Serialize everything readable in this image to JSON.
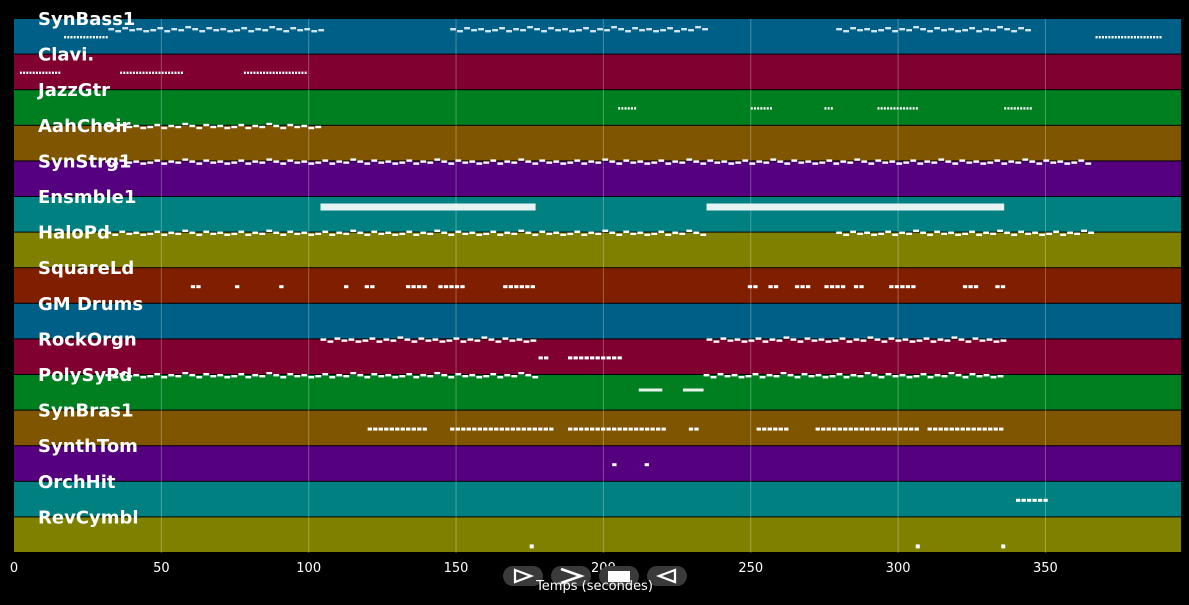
{
  "tracks": [
    {
      "name": "SynBass1",
      "color": "#005f87",
      "notes": [
        [
          17,
          32,
          "t"
        ],
        [
          32,
          104,
          "s"
        ],
        [
          148,
          235,
          "s"
        ],
        [
          279,
          345,
          "s"
        ],
        [
          367,
          389,
          "t"
        ]
      ]
    },
    {
      "name": "Clavi.",
      "color": "#800030",
      "notes": [
        [
          2,
          16,
          "t"
        ],
        [
          36,
          57,
          "t"
        ],
        [
          78,
          99,
          "t"
        ]
      ]
    },
    {
      "name": "JazzGtr",
      "color": "#007f21",
      "notes": [
        [
          205,
          211,
          "t"
        ],
        [
          250,
          257,
          "t"
        ],
        [
          275,
          278,
          "t"
        ],
        [
          293,
          307,
          "t"
        ],
        [
          336,
          345,
          "t"
        ]
      ]
    },
    {
      "name": "AahChoir",
      "color": "#805500",
      "notes": [
        [
          31,
          104,
          "m"
        ]
      ]
    },
    {
      "name": "SynStrg1",
      "color": "#55007f",
      "notes": [
        [
          31,
          365,
          "m"
        ]
      ]
    },
    {
      "name": "Ensmble1",
      "color": "#008080",
      "notes": [
        [
          104,
          177,
          "b"
        ],
        [
          235,
          336,
          "b"
        ]
      ]
    },
    {
      "name": "HaloPd",
      "color": "#808000",
      "notes": [
        [
          31,
          235,
          "m"
        ],
        [
          279,
          365,
          "m"
        ]
      ]
    },
    {
      "name": "SquareLd",
      "color": "#7f1f00",
      "notes": [
        [
          60,
          62,
          "d"
        ],
        [
          75,
          76,
          "d"
        ],
        [
          90,
          91,
          "d"
        ],
        [
          112,
          113,
          "d"
        ],
        [
          119,
          121,
          "d"
        ],
        [
          133,
          139,
          "d"
        ],
        [
          144,
          152,
          "d"
        ],
        [
          166,
          176,
          "d"
        ],
        [
          249,
          251,
          "d"
        ],
        [
          256,
          258,
          "d"
        ],
        [
          265,
          270,
          "d"
        ],
        [
          275,
          282,
          "d"
        ],
        [
          285,
          288,
          "d"
        ],
        [
          297,
          305,
          "d"
        ],
        [
          322,
          327,
          "d"
        ],
        [
          333,
          335,
          "d"
        ]
      ]
    },
    {
      "name": "GM Drums",
      "color": "#005f87",
      "notes": []
    },
    {
      "name": "RockOrgn",
      "color": "#800030",
      "notes": [
        [
          104,
          177,
          "m"
        ],
        [
          178,
          181,
          "d"
        ],
        [
          188,
          206,
          "d"
        ],
        [
          235,
          336,
          "m"
        ]
      ]
    },
    {
      "name": "PolySyPd",
      "color": "#007f21",
      "notes": [
        [
          31,
          177,
          "m"
        ],
        [
          212,
          220,
          "l"
        ],
        [
          227,
          234,
          "l"
        ],
        [
          234,
          336,
          "m"
        ]
      ]
    },
    {
      "name": "SynBras1",
      "color": "#805500",
      "notes": [
        [
          120,
          140,
          "d"
        ],
        [
          148,
          182,
          "d"
        ],
        [
          188,
          221,
          "d"
        ],
        [
          229,
          232,
          "d"
        ],
        [
          252,
          262,
          "d"
        ],
        [
          272,
          306,
          "d"
        ],
        [
          310,
          336,
          "d"
        ]
      ]
    },
    {
      "name": "SynthTom",
      "color": "#55007f",
      "notes": [
        [
          203,
          204,
          "d"
        ],
        [
          214,
          215,
          "d"
        ]
      ]
    },
    {
      "name": "OrchHit",
      "color": "#008080",
      "notes": [
        [
          340,
          350,
          "d"
        ]
      ]
    },
    {
      "name": "RevCymbl",
      "color": "#808000",
      "notes": [
        [
          175,
          177,
          "p"
        ],
        [
          306,
          308,
          "p"
        ],
        [
          335,
          337,
          "p"
        ]
      ]
    }
  ],
  "axis": {
    "ticks": [
      "0",
      "50",
      "100",
      "150",
      "200",
      "250",
      "300",
      "350"
    ],
    "tick_values": [
      0,
      50,
      100,
      150,
      200,
      250,
      300,
      350
    ],
    "xmax": 396,
    "label": "Temps (secondes)"
  },
  "controls": [
    {
      "name": "play-button",
      "icon": "play-outline-icon"
    },
    {
      "name": "fast-forward-button",
      "icon": "chevron-right-icon"
    },
    {
      "name": "stop-button",
      "icon": "stop-icon"
    },
    {
      "name": "rewind-button",
      "icon": "rewind-outline-icon"
    }
  ]
}
